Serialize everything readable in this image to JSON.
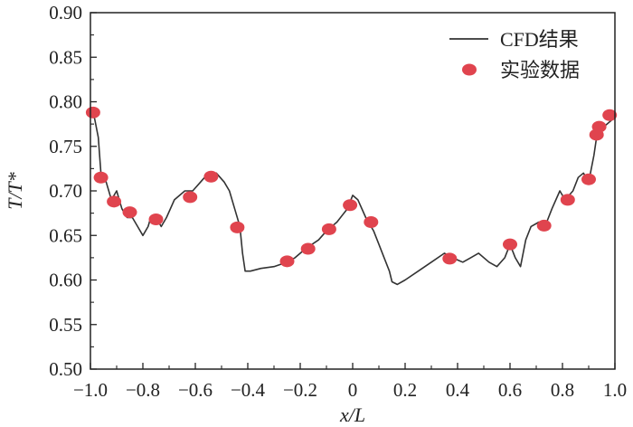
{
  "chart_data": {
    "type": "line",
    "xlabel": "x/L",
    "ylabel": "T/T*",
    "xlim": [
      -1.0,
      1.0
    ],
    "ylim": [
      0.5,
      0.9
    ],
    "xticks": [
      "−1.0",
      "−0.8",
      "−0.6",
      "−0.4",
      "−0.2",
      "0",
      "0.2",
      "0.4",
      "0.6",
      "0.8",
      "1.0"
    ],
    "yticks": [
      "0.50",
      "0.55",
      "0.60",
      "0.65",
      "0.70",
      "0.75",
      "0.80",
      "0.85",
      "0.90"
    ],
    "legend_position": "top-right",
    "series": [
      {
        "name": "CFD结果",
        "kind": "line",
        "color": "#333333",
        "x": [
          -0.99,
          -0.97,
          -0.96,
          -0.94,
          -0.92,
          -0.9,
          -0.88,
          -0.86,
          -0.84,
          -0.82,
          -0.8,
          -0.78,
          -0.77,
          -0.75,
          -0.73,
          -0.71,
          -0.68,
          -0.64,
          -0.61,
          -0.58,
          -0.55,
          -0.52,
          -0.49,
          -0.47,
          -0.45,
          -0.43,
          -0.42,
          -0.41,
          -0.39,
          -0.35,
          -0.3,
          -0.25,
          -0.22,
          -0.18,
          -0.13,
          -0.1,
          -0.06,
          -0.02,
          0.0,
          0.02,
          0.05,
          0.08,
          0.1,
          0.12,
          0.14,
          0.15,
          0.17,
          0.2,
          0.25,
          0.3,
          0.35,
          0.38,
          0.42,
          0.45,
          0.48,
          0.52,
          0.55,
          0.58,
          0.6,
          0.62,
          0.64,
          0.66,
          0.68,
          0.71,
          0.74,
          0.76,
          0.79,
          0.81,
          0.84,
          0.86,
          0.88,
          0.9,
          0.92,
          0.93,
          0.95,
          0.97,
          0.99
        ],
        "y": [
          0.79,
          0.76,
          0.72,
          0.71,
          0.69,
          0.7,
          0.68,
          0.67,
          0.67,
          0.66,
          0.65,
          0.66,
          0.67,
          0.67,
          0.66,
          0.67,
          0.69,
          0.7,
          0.7,
          0.71,
          0.72,
          0.72,
          0.71,
          0.7,
          0.68,
          0.66,
          0.63,
          0.61,
          0.61,
          0.613,
          0.615,
          0.62,
          0.625,
          0.635,
          0.645,
          0.655,
          0.665,
          0.68,
          0.695,
          0.69,
          0.67,
          0.655,
          0.64,
          0.625,
          0.61,
          0.598,
          0.595,
          0.6,
          0.61,
          0.62,
          0.63,
          0.625,
          0.62,
          0.625,
          0.63,
          0.62,
          0.615,
          0.625,
          0.64,
          0.625,
          0.615,
          0.645,
          0.66,
          0.665,
          0.665,
          0.68,
          0.7,
          0.69,
          0.7,
          0.715,
          0.72,
          0.71,
          0.74,
          0.76,
          0.77,
          0.775,
          0.78
        ]
      },
      {
        "name": "实验数据",
        "kind": "scatter",
        "color": "#e0444e",
        "x": [
          -0.99,
          -0.96,
          -0.91,
          -0.85,
          -0.75,
          -0.62,
          -0.54,
          -0.44,
          -0.25,
          -0.17,
          -0.09,
          -0.01,
          0.07,
          0.37,
          0.6,
          0.73,
          0.82,
          0.9,
          0.93,
          0.94,
          0.98
        ],
        "y": [
          0.788,
          0.715,
          0.688,
          0.676,
          0.668,
          0.693,
          0.716,
          0.659,
          0.621,
          0.635,
          0.657,
          0.684,
          0.665,
          0.624,
          0.64,
          0.661,
          0.69,
          0.713,
          0.763,
          0.772,
          0.785
        ]
      }
    ]
  }
}
